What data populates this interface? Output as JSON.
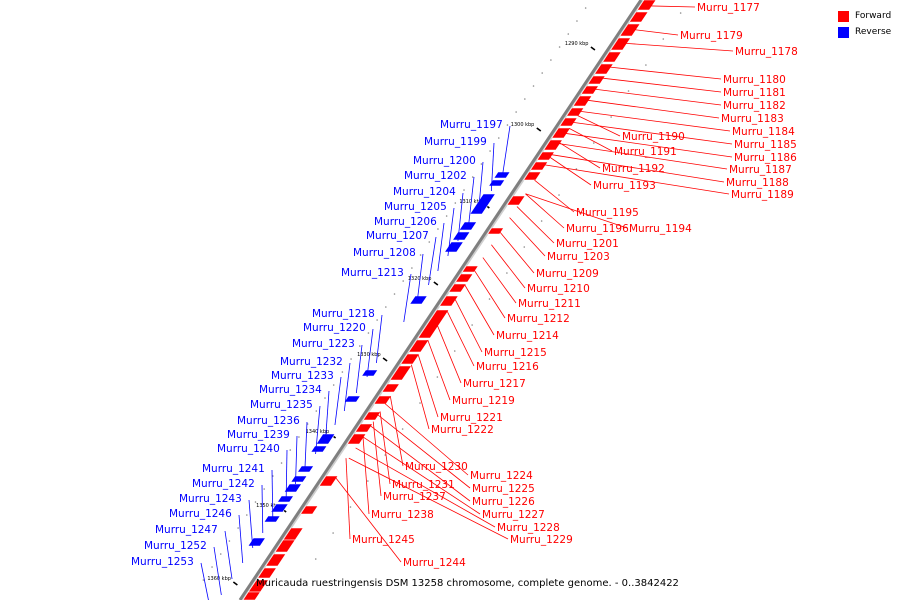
{
  "caption": "Muricauda ruestringensis DSM 13258 chromosome, complete genome. - 0..3842422",
  "legend": [
    {
      "label": "Forward",
      "color": "#ff0000"
    },
    {
      "label": "Reverse",
      "color": "#0000ff"
    }
  ],
  "colors": {
    "forward": "#ff0000",
    "reverse": "#0000ff",
    "backbone": "#7f7f7f"
  },
  "ticks": [
    "1290 kbp",
    "1300 kbp",
    "1310 kbp",
    "1320 kbp",
    "1330 kbp",
    "1340 kbp",
    "1350 kbp",
    "1360 kbp"
  ],
  "forward_genes": [
    "Murru_1177",
    "Murru_1179",
    "Murru_1178",
    "Murru_1180",
    "Murru_1181",
    "Murru_1182",
    "Murru_1183",
    "Murru_1184",
    "Murru_1185",
    "Murru_1186",
    "Murru_1187",
    "Murru_1188",
    "Murru_1189",
    "Murru_1190",
    "Murru_1191",
    "Murru_1192",
    "Murru_1193",
    "Murru_1195",
    "Murru_1196",
    "Murru_1194",
    "Murru_1201",
    "Murru_1203",
    "Murru_1209",
    "Murru_1210",
    "Murru_1211",
    "Murru_1212",
    "Murru_1214",
    "Murru_1215",
    "Murru_1216",
    "Murru_1217",
    "Murru_1219",
    "Murru_1221",
    "Murru_1222",
    "Murru_1230",
    "Murru_1224",
    "Murru_1231",
    "Murru_1225",
    "Murru_1237",
    "Murru_1226",
    "Murru_1238",
    "Murru_1227",
    "Murru_1228",
    "Murru_1229",
    "Murru_1245",
    "Murru_1244"
  ],
  "reverse_genes": [
    "Murru_1197",
    "Murru_1199",
    "Murru_1200",
    "Murru_1202",
    "Murru_1204",
    "Murru_1205",
    "Murru_1206",
    "Murru_1207",
    "Murru_1208",
    "Murru_1213",
    "Murru_1218",
    "Murru_1220",
    "Murru_1223",
    "Murru_1232",
    "Murru_1233",
    "Murru_1234",
    "Murru_1235",
    "Murru_1236",
    "Murru_1239",
    "Murru_1240",
    "Murru_1241",
    "Murru_1242",
    "Murru_1243",
    "Murru_1246",
    "Murru_1247",
    "Murru_1252",
    "Murru_1253"
  ]
}
